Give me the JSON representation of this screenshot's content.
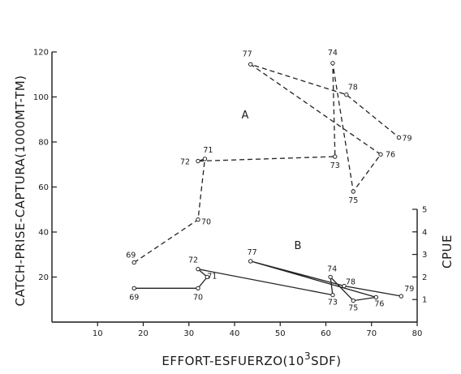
{
  "chart_data": {
    "type": "line",
    "xlabel": "EFFORT-ESFUERZO(10",
    "xlabel_sup": "3",
    "xlabel_tail": "SDF)",
    "ylabel": "CATCH-PRISE-CAPTURA(1000MT-TM)",
    "y2label": "CPUE",
    "xlim": [
      0,
      80
    ],
    "ylim": [
      0,
      120
    ],
    "y2lim": [
      0,
      5
    ],
    "x_ticks": [
      10,
      20,
      30,
      40,
      50,
      60,
      70,
      80
    ],
    "x_tick_labels": [
      "10",
      "20",
      "30",
      "40",
      "50",
      "60",
      "70",
      "80"
    ],
    "y_ticks": [
      20,
      40,
      60,
      80,
      100,
      120
    ],
    "y_tick_labels": [
      "20",
      "40",
      "60",
      "80",
      "100",
      "120"
    ],
    "y2_ticks": [
      1,
      2,
      3,
      4,
      5
    ],
    "y2_tick_labels": [
      "1",
      "2",
      "3",
      "4",
      "5"
    ],
    "grid": false,
    "series": [
      {
        "name": "A",
        "axis": "left",
        "style": "dashed",
        "points": [
          {
            "year": "69",
            "x": 18,
            "y": 26.5
          },
          {
            "year": "70",
            "x": 32,
            "y": 45.5
          },
          {
            "year": "71",
            "x": 33.5,
            "y": 72.5
          },
          {
            "year": "72",
            "x": 32,
            "y": 71.5
          },
          {
            "year": "73",
            "x": 62,
            "y": 73.5
          },
          {
            "year": "74",
            "x": 61.5,
            "y": 115
          },
          {
            "year": "75",
            "x": 66,
            "y": 58
          },
          {
            "year": "76",
            "x": 72,
            "y": 74.5
          },
          {
            "year": "77",
            "x": 43.5,
            "y": 114.5
          },
          {
            "year": "78",
            "x": 64.5,
            "y": 101
          },
          {
            "year": "79",
            "x": 76,
            "y": 82
          }
        ]
      },
      {
        "name": "B",
        "axis": "right",
        "style": "solid",
        "points": [
          {
            "year": "69",
            "x": 18,
            "y": 1.5
          },
          {
            "year": "70",
            "x": 32,
            "y": 1.5
          },
          {
            "year": "71",
            "x": 34,
            "y": 2.0
          },
          {
            "year": "72",
            "x": 32,
            "y": 2.35
          },
          {
            "year": "73",
            "x": 61.5,
            "y": 1.2
          },
          {
            "year": "74",
            "x": 61,
            "y": 2.0
          },
          {
            "year": "75",
            "x": 66,
            "y": 0.95
          },
          {
            "year": "76",
            "x": 71,
            "y": 1.1
          },
          {
            "year": "77",
            "x": 43.5,
            "y": 2.7
          },
          {
            "year": "78",
            "x": 64,
            "y": 1.6
          },
          {
            "year": "79",
            "x": 76.5,
            "y": 1.15
          }
        ]
      }
    ]
  }
}
